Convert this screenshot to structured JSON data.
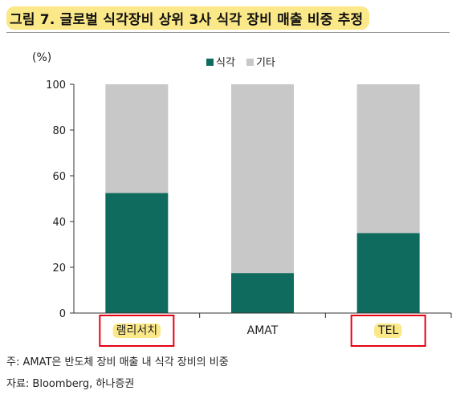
{
  "title": "그림 7. 글로벌 식각장비 상위 3사 식각 장비 매출 비중 추정",
  "unit_label": "(%)",
  "notes": {
    "footnote": "주: AMAT은 반도체 장비 매출 내 식각 장비의 비중",
    "source": "자료: Bloomberg, 하나증권"
  },
  "colors": {
    "etch": "#0f6b5e",
    "other": "#c8c8c8",
    "title_highlight": "#fbe889",
    "category_highlight": "#fbe889",
    "callout_box": "#e60012"
  },
  "chart_data": {
    "type": "bar",
    "stacked": true,
    "categories": [
      "램리서치",
      "AMAT",
      "TEL"
    ],
    "series": [
      {
        "name": "식각",
        "values": [
          52.5,
          17.5,
          35
        ],
        "color": "#0f6b5e"
      },
      {
        "name": "기타",
        "values": [
          47.5,
          82.5,
          65
        ],
        "color": "#c8c8c8"
      }
    ],
    "ylim": [
      0,
      100
    ],
    "yticks": [
      0,
      20,
      40,
      60,
      80,
      100
    ],
    "ylabel": "(%)",
    "legend_position": "top-center",
    "grid": false,
    "highlighted_categories": [
      "램리서치",
      "TEL"
    ]
  }
}
